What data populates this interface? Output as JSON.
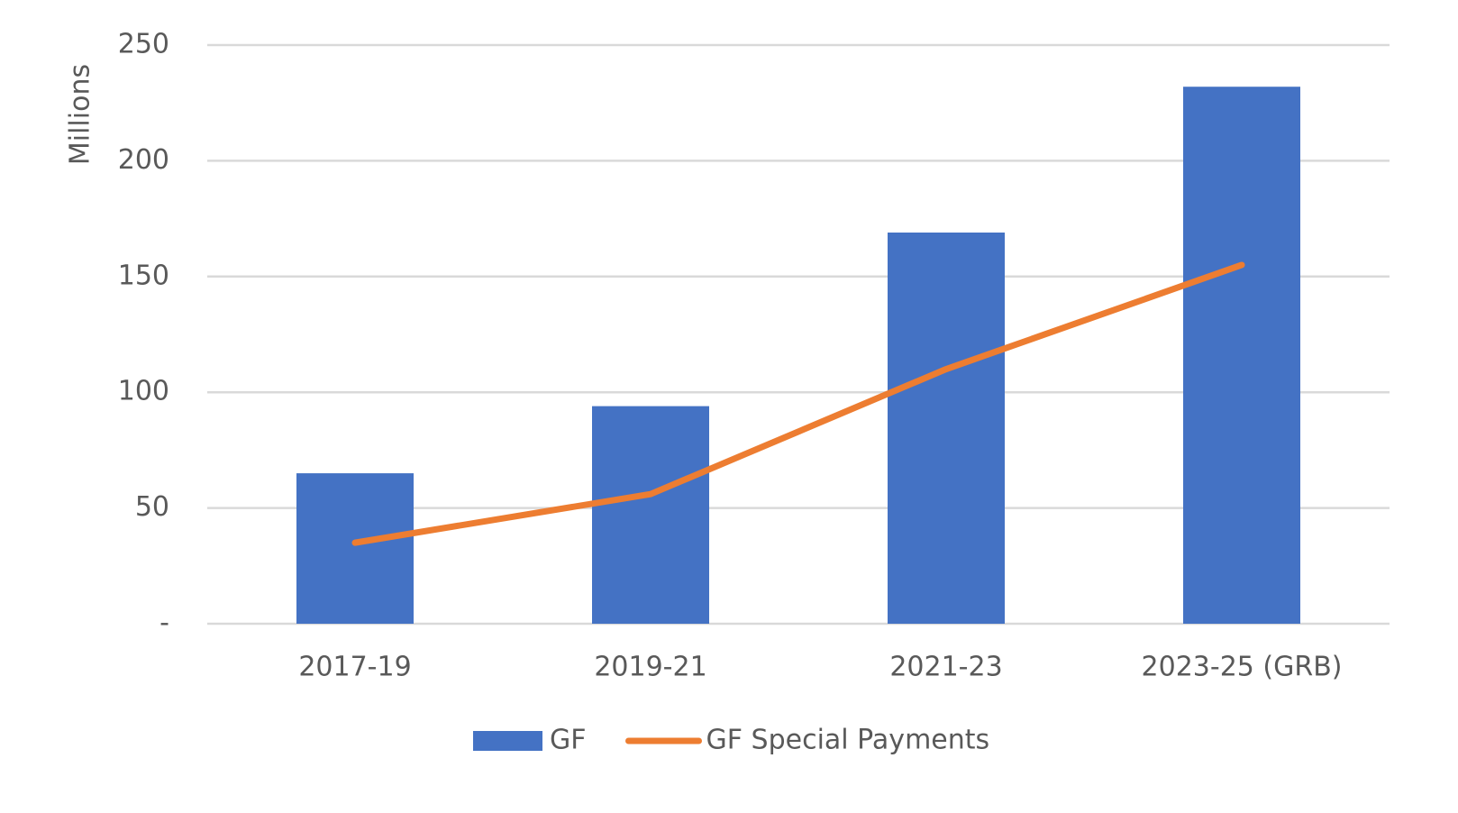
{
  "chart_data": {
    "type": "bar",
    "y_label": "Millions",
    "categories": [
      "2017-19",
      "2019-21",
      "2021-23",
      "2023-25 (GRB)"
    ],
    "series": [
      {
        "name": "GF",
        "type": "bar",
        "color": "#4472c4",
        "values": [
          65,
          94,
          169,
          232
        ]
      },
      {
        "name": "GF Special Payments",
        "type": "line",
        "color": "#ed7d31",
        "values": [
          35,
          56,
          110,
          155
        ]
      }
    ],
    "ylim": [
      0,
      250
    ],
    "yticks": [
      {
        "value": 0,
        "label": "-"
      },
      50,
      100,
      150,
      200,
      250
    ],
    "grid": true,
    "legend": "bottom"
  }
}
